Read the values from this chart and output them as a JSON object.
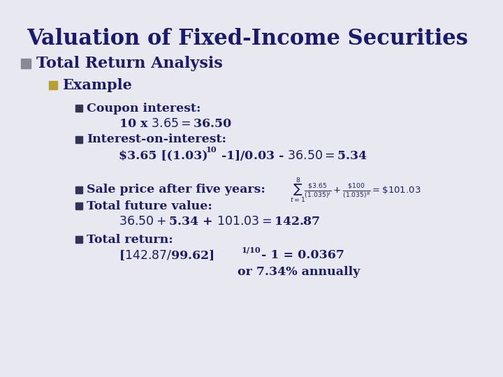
{
  "title": "Valuation of Fixed-Income Securities",
  "title_color": "#1a1a6e",
  "bg_color": "#e8e8f0",
  "bullet1_text": "Total Return Analysis",
  "bullet2_text": "Example",
  "bullet1_color": "#888899",
  "bullet2_color": "#b8a030",
  "text_color": "#1a1a6e",
  "title_font_size": 22,
  "level1_font_size": 16,
  "level2_font_size": 15,
  "level3_font_size": 12.5
}
